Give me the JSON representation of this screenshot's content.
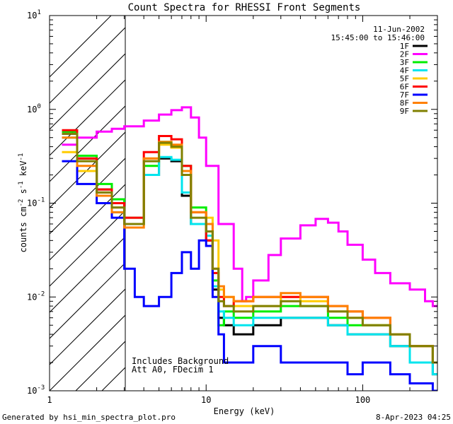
{
  "chart_data": {
    "type": "line",
    "title": "Count Spectra for RHESSI Front Segments",
    "xlabel": "Energy (keV)",
    "ylabel": "counts cm-2 s-1 keV-1",
    "xscale": "log",
    "yscale": "log",
    "xlim": [
      1,
      300
    ],
    "ylim": [
      0.001,
      10
    ],
    "x_ticks": [
      {
        "value": 1,
        "label": "1"
      },
      {
        "value": 10,
        "label": "10"
      },
      {
        "value": 100,
        "label": "100"
      }
    ],
    "y_ticks": [
      {
        "value": 0.001,
        "base": "10",
        "exp": "-3"
      },
      {
        "value": 0.01,
        "base": "10",
        "exp": "-2"
      },
      {
        "value": 0.1,
        "base": "10",
        "exp": "-1"
      },
      {
        "value": 1,
        "base": "10",
        "exp": "0"
      },
      {
        "value": 10,
        "base": "10",
        "exp": "1"
      }
    ],
    "hatched_region_keV": [
      1,
      3
    ],
    "legend_date": "11-Jun-2002",
    "legend_time": "15:45:00 to 15:46:00",
    "annotations": [
      "Includes Background",
      "Att A0, FDecim 1"
    ],
    "series": [
      {
        "name": "1F",
        "color": "#000000",
        "x": [
          1.2,
          1.5,
          2,
          2.5,
          3,
          4,
          5,
          6,
          7,
          8,
          10,
          11,
          12,
          13,
          15,
          20,
          30,
          40,
          60,
          80,
          100,
          150,
          200,
          280
        ],
        "y": [
          0.55,
          0.3,
          0.14,
          0.1,
          0.06,
          0.2,
          0.3,
          0.28,
          0.12,
          0.06,
          0.04,
          0.012,
          0.006,
          0.005,
          0.004,
          0.005,
          0.006,
          0.006,
          0.005,
          0.004,
          0.004,
          0.003,
          0.002,
          0.0015
        ]
      },
      {
        "name": "2F",
        "color": "#ff00ff",
        "x": [
          1.2,
          1.5,
          2,
          2.5,
          3,
          4,
          5,
          6,
          7,
          8,
          9,
          10,
          12,
          15,
          17,
          18,
          20,
          25,
          30,
          40,
          50,
          60,
          70,
          80,
          100,
          120,
          150,
          200,
          250,
          280,
          300
        ],
        "y": [
          0.42,
          0.5,
          0.58,
          0.62,
          0.66,
          0.76,
          0.88,
          0.98,
          1.05,
          0.82,
          0.5,
          0.25,
          0.06,
          0.02,
          0.009,
          0.01,
          0.015,
          0.028,
          0.042,
          0.058,
          0.068,
          0.062,
          0.05,
          0.036,
          0.025,
          0.018,
          0.014,
          0.012,
          0.009,
          0.008,
          0.008
        ]
      },
      {
        "name": "3F",
        "color": "#00ee00",
        "x": [
          1.2,
          1.5,
          2,
          2.5,
          3,
          4,
          5,
          6,
          7,
          8,
          10,
          11,
          12,
          13,
          15,
          20,
          30,
          40,
          60,
          80,
          100,
          150,
          200,
          280
        ],
        "y": [
          0.58,
          0.32,
          0.16,
          0.11,
          0.07,
          0.25,
          0.45,
          0.4,
          0.25,
          0.09,
          0.05,
          0.015,
          0.005,
          0.007,
          0.006,
          0.007,
          0.008,
          0.008,
          0.006,
          0.005,
          0.005,
          0.004,
          0.003,
          0.002
        ]
      },
      {
        "name": "4F",
        "color": "#00e5ee",
        "x": [
          1.2,
          1.5,
          2,
          2.5,
          3,
          4,
          5,
          6,
          7,
          8,
          10,
          11,
          12,
          13,
          15,
          20,
          30,
          40,
          60,
          80,
          100,
          150,
          200,
          280
        ],
        "y": [
          0.5,
          0.22,
          0.12,
          0.08,
          0.06,
          0.2,
          0.31,
          0.29,
          0.13,
          0.06,
          0.045,
          0.013,
          0.007,
          0.006,
          0.005,
          0.006,
          0.006,
          0.006,
          0.005,
          0.004,
          0.004,
          0.003,
          0.002,
          0.0015
        ]
      },
      {
        "name": "5F",
        "color": "#ffcc00",
        "x": [
          1.2,
          1.5,
          2,
          2.5,
          3,
          4,
          5,
          6,
          7,
          8,
          10,
          11,
          12,
          13,
          15,
          20,
          30,
          40,
          60,
          80,
          100,
          150,
          200,
          280
        ],
        "y": [
          0.35,
          0.22,
          0.13,
          0.09,
          0.06,
          0.3,
          0.42,
          0.39,
          0.2,
          0.08,
          0.07,
          0.04,
          0.012,
          0.01,
          0.008,
          0.008,
          0.01,
          0.009,
          0.007,
          0.006,
          0.005,
          0.004,
          0.003,
          0.002
        ]
      },
      {
        "name": "6F",
        "color": "#ff0000",
        "x": [
          1.2,
          1.5,
          2,
          2.5,
          3,
          4,
          5,
          6,
          7,
          8,
          10,
          11,
          12,
          13,
          15,
          20,
          30,
          40,
          60,
          80,
          100,
          150,
          200,
          280
        ],
        "y": [
          0.6,
          0.3,
          0.14,
          0.1,
          0.07,
          0.35,
          0.52,
          0.48,
          0.25,
          0.08,
          0.04,
          0.018,
          0.01,
          0.008,
          0.009,
          0.01,
          0.01,
          0.01,
          0.008,
          0.007,
          0.006,
          0.004,
          0.003,
          0.002
        ]
      },
      {
        "name": "7F",
        "color": "#0000ff",
        "x": [
          1.2,
          1.5,
          2,
          2.5,
          3,
          3.5,
          4,
          5,
          6,
          7,
          8,
          9,
          10,
          11,
          12,
          13,
          15,
          20,
          30,
          40,
          60,
          80,
          100,
          150,
          200,
          280
        ],
        "y": [
          0.28,
          0.16,
          0.1,
          0.07,
          0.02,
          0.01,
          0.008,
          0.01,
          0.018,
          0.03,
          0.02,
          0.04,
          0.035,
          0.01,
          0.004,
          0.002,
          0.002,
          0.003,
          0.002,
          0.002,
          0.002,
          0.0015,
          0.002,
          0.0015,
          0.0012,
          0.001
        ]
      },
      {
        "name": "8F",
        "color": "#ff8000",
        "x": [
          1.2,
          1.5,
          2,
          2.5,
          3,
          4,
          5,
          6,
          7,
          8,
          10,
          11,
          12,
          13,
          15,
          20,
          30,
          40,
          60,
          80,
          100,
          150,
          200,
          280
        ],
        "y": [
          0.5,
          0.25,
          0.12,
          0.08,
          0.055,
          0.3,
          0.45,
          0.42,
          0.22,
          0.08,
          0.06,
          0.02,
          0.013,
          0.01,
          0.009,
          0.01,
          0.011,
          0.01,
          0.008,
          0.007,
          0.006,
          0.004,
          0.003,
          0.002
        ]
      },
      {
        "name": "9F",
        "color": "#808000",
        "x": [
          1.2,
          1.5,
          2,
          2.5,
          3,
          4,
          5,
          6,
          7,
          8,
          10,
          11,
          12,
          13,
          15,
          20,
          30,
          40,
          60,
          80,
          100,
          150,
          200,
          280
        ],
        "y": [
          0.55,
          0.28,
          0.13,
          0.09,
          0.06,
          0.28,
          0.44,
          0.4,
          0.2,
          0.07,
          0.05,
          0.02,
          0.009,
          0.008,
          0.007,
          0.008,
          0.009,
          0.008,
          0.007,
          0.006,
          0.005,
          0.004,
          0.003,
          0.002
        ]
      }
    ]
  },
  "footer": {
    "generated_by": "Generated by hsi_min_spectra_plot.pro",
    "timestamp": "8-Apr-2023 04:25"
  }
}
